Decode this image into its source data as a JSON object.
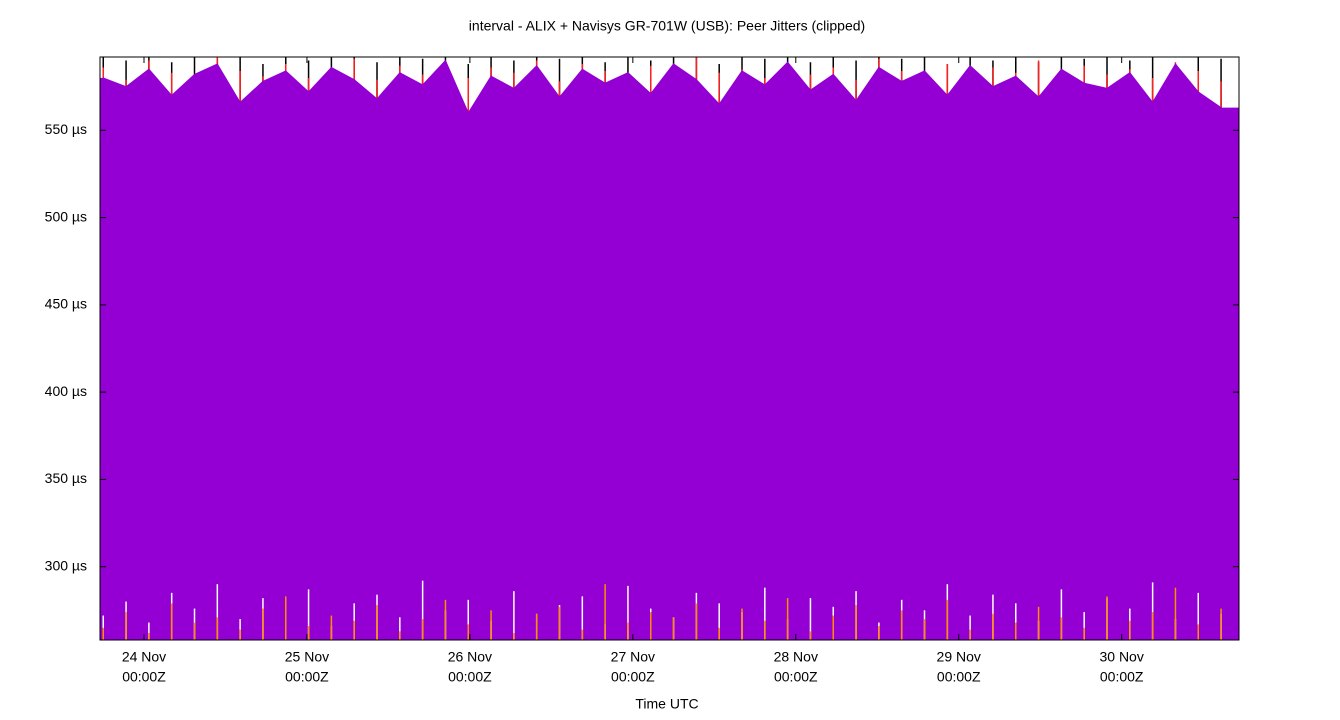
{
  "chart_data": {
    "type": "impulse",
    "title": "interval - ALIX + Navisys GR-701W (USB): Peer Jitters (clipped)",
    "x_label": "Time UTC",
    "xlim": [
      23.73,
      30.72
    ],
    "ylim": [
      258,
      592
    ],
    "xticks": [
      {
        "value": 24,
        "label": [
          "24 Nov",
          "00:00Z"
        ]
      },
      {
        "value": 25,
        "label": [
          "25 Nov",
          "00:00Z"
        ]
      },
      {
        "value": 26,
        "label": [
          "26 Nov",
          "00:00Z"
        ]
      },
      {
        "value": 27,
        "label": [
          "27 Nov",
          "00:00Z"
        ]
      },
      {
        "value": 28,
        "label": [
          "28 Nov",
          "00:00Z"
        ]
      },
      {
        "value": 29,
        "label": [
          "29 Nov",
          "00:00Z"
        ]
      },
      {
        "value": 30,
        "label": [
          "30 Nov",
          "00:00Z"
        ]
      }
    ],
    "yticks": [
      {
        "value": 300,
        "label": "300 µs"
      },
      {
        "value": 350,
        "label": "350 µs"
      },
      {
        "value": 400,
        "label": "400 µs"
      },
      {
        "value": 450,
        "label": "450 µs"
      },
      {
        "value": 500,
        "label": "500 µs"
      },
      {
        "value": 550,
        "label": "550 µs"
      }
    ],
    "x": [
      23.75,
      23.89,
      24.03,
      24.17,
      24.31,
      24.45,
      24.59,
      24.73,
      24.87,
      25.01,
      25.15,
      25.29,
      25.43,
      25.57,
      25.71,
      25.85,
      25.99,
      26.13,
      26.27,
      26.41,
      26.55,
      26.69,
      26.83,
      26.97,
      27.11,
      27.25,
      27.39,
      27.53,
      27.67,
      27.81,
      27.95,
      28.09,
      28.23,
      28.37,
      28.51,
      28.65,
      28.79,
      28.93,
      29.07,
      29.21,
      29.35,
      29.49,
      29.63,
      29.77,
      29.91,
      30.05,
      30.19,
      30.33,
      30.47,
      30.61
    ],
    "series": [
      {
        "color": "#000000",
        "type": "impulse",
        "values": [
          592,
          590,
          592,
          589,
          592,
          591,
          592,
          588,
          592,
          590,
          592,
          592,
          589,
          592,
          591,
          592,
          588,
          592,
          590,
          592,
          591,
          592,
          589,
          592,
          590,
          592,
          592,
          588,
          592,
          591,
          592,
          589,
          592,
          590,
          592,
          591,
          592,
          588,
          592,
          590,
          592,
          589,
          592,
          591,
          592,
          590,
          592,
          588,
          592,
          591
        ]
      },
      {
        "color": "#ff2020",
        "type": "impulse",
        "values": [
          586,
          579,
          590,
          583,
          578,
          592,
          584,
          581,
          588,
          580,
          585,
          591,
          579,
          587,
          582,
          589,
          580,
          586,
          583,
          590,
          578,
          588,
          584,
          581,
          587,
          579,
          592,
          583,
          585,
          580,
          589,
          582,
          586,
          579,
          591,
          584,
          581,
          588,
          580,
          586,
          583,
          590,
          579,
          587,
          582,
          585,
          580,
          589,
          584,
          578
        ]
      },
      {
        "color": "#9400d3",
        "type": "area",
        "values": [
          580,
          575,
          585,
          570,
          582,
          588,
          566,
          578,
          584,
          572,
          586,
          579,
          568,
          583,
          576,
          590,
          560,
          581,
          574,
          587,
          569,
          585,
          577,
          583,
          571,
          588,
          579,
          565,
          584,
          576,
          589,
          573,
          582,
          567,
          586,
          578,
          584,
          570,
          587,
          575,
          581,
          569,
          585,
          577,
          574,
          583,
          566,
          588,
          572,
          563
        ]
      },
      {
        "color": "#ffffff",
        "type": "impulse",
        "values": [
          272,
          280,
          268,
          285,
          276,
          290,
          270,
          282,
          274,
          287,
          266,
          279,
          284,
          271,
          292,
          275,
          281,
          269,
          286,
          273,
          278,
          283,
          267,
          289,
          276,
          271,
          285,
          279,
          274,
          288,
          270,
          282,
          277,
          286,
          268,
          281,
          275,
          290,
          272,
          284,
          279,
          269,
          287,
          274,
          282,
          276,
          291,
          270,
          285,
          273
        ]
      },
      {
        "color": "#ff8c00",
        "type": "impulse",
        "values": [
          265,
          274,
          262,
          279,
          268,
          271,
          264,
          276,
          283,
          266,
          272,
          269,
          278,
          263,
          270,
          281,
          267,
          275,
          262,
          273,
          277,
          264,
          290,
          268,
          274,
          271,
          279,
          265,
          276,
          269,
          282,
          263,
          272,
          278,
          266,
          275,
          270,
          281,
          264,
          273,
          268,
          277,
          271,
          265,
          283,
          269,
          274,
          288,
          267,
          276
        ]
      }
    ]
  }
}
